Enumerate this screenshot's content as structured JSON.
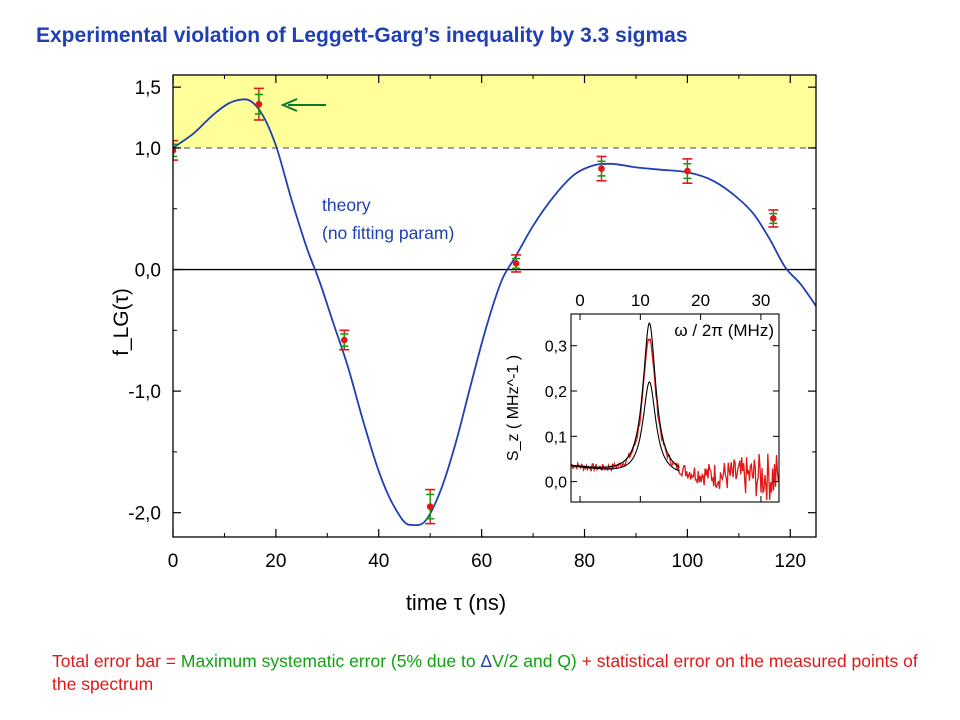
{
  "title": "Experimental violation of Leggett-Garg’s inequality by 3.3 sigmas",
  "footer": {
    "part1": "Total error bar",
    "eq": " = ",
    "part2": "Maximum systematic error (5% due to ",
    "delta": "Δ",
    "part3": "V/2 and Q)",
    "plus": " + statistical error on the measured points of the spectrum"
  },
  "colors": {
    "title": "#1f3fb4",
    "theory": "#1f3fb4",
    "violation_region": "#ffff99",
    "point": "#e01818",
    "systematic_error": "#12a012",
    "arrow": "#0a7a2a"
  },
  "chart_data": [
    {
      "type": "line",
      "xlabel": "time τ (ns)",
      "ylabel": "f_LG(τ)",
      "xlim": [
        0,
        125
      ],
      "ylim": [
        -2.2,
        1.6
      ],
      "x_ticks": [
        "0",
        "20",
        "40",
        "60",
        "80",
        "100",
        "120"
      ],
      "y_ticks": [
        {
          "value": 1.5,
          "label": "1,5"
        },
        {
          "value": 1.0,
          "label": "1,0"
        },
        {
          "value": 0.0,
          "label": "0,0"
        },
        {
          "value": -1.0,
          "label": "-1,0"
        },
        {
          "value": -2.0,
          "label": "-2,0"
        }
      ],
      "violation_region": [
        1.0,
        1.6
      ],
      "annotation": {
        "line1": "theory",
        "line2": "(no fitting param)"
      },
      "theory_curve": {
        "x": [
          0,
          4,
          8,
          11,
          14,
          17,
          20,
          23,
          26,
          28.5,
          31,
          34,
          37,
          40,
          43,
          46,
          49,
          52,
          55,
          58,
          61,
          64,
          66.5,
          70,
          74,
          78,
          82,
          85,
          90,
          95,
          100,
          105,
          110,
          113,
          116,
          119,
          122,
          125
        ],
        "y": [
          1.0,
          1.12,
          1.28,
          1.37,
          1.4,
          1.3,
          1.02,
          0.58,
          0.18,
          -0.1,
          -0.42,
          -0.8,
          -1.25,
          -1.66,
          -1.95,
          -2.1,
          -2.07,
          -1.82,
          -1.42,
          -0.93,
          -0.46,
          -0.08,
          0.1,
          0.36,
          0.6,
          0.78,
          0.86,
          0.87,
          0.84,
          0.82,
          0.8,
          0.73,
          0.58,
          0.45,
          0.25,
          0.02,
          -0.12,
          -0.3
        ]
      },
      "points": {
        "x": [
          0,
          16.7,
          33.3,
          50,
          66.7,
          83.3,
          100,
          116.7
        ],
        "y": [
          0.98,
          1.36,
          -0.58,
          -1.95,
          0.05,
          0.83,
          0.81,
          0.42
        ],
        "err_total": [
          0.08,
          0.13,
          0.08,
          0.14,
          0.07,
          0.1,
          0.1,
          0.07
        ],
        "err_systematic": [
          0.05,
          0.08,
          0.05,
          0.1,
          0.04,
          0.06,
          0.06,
          0.04
        ]
      }
    },
    {
      "type": "line",
      "xlabel": "ω / 2π (MHz)",
      "ylabel": "S_z ( MHz^-1 )",
      "xlim": [
        -1.5,
        33
      ],
      "ylim": [
        -0.045,
        0.37
      ],
      "x_ticks": [
        "0",
        "10",
        "20",
        "30"
      ],
      "y_ticks": [
        {
          "value": 0.3,
          "label": "0,3"
        },
        {
          "value": 0.2,
          "label": "0,2"
        },
        {
          "value": 0.1,
          "label": "0,1"
        },
        {
          "value": 0.0,
          "label": "0,0"
        }
      ],
      "peak_center": 11.5,
      "peak_width": 1.3,
      "series": [
        {
          "color": "#000000",
          "peaks": [
            0.34,
            0.21
          ]
        },
        {
          "color": "#e01818",
          "peaks": [
            0.31
          ]
        }
      ]
    }
  ]
}
